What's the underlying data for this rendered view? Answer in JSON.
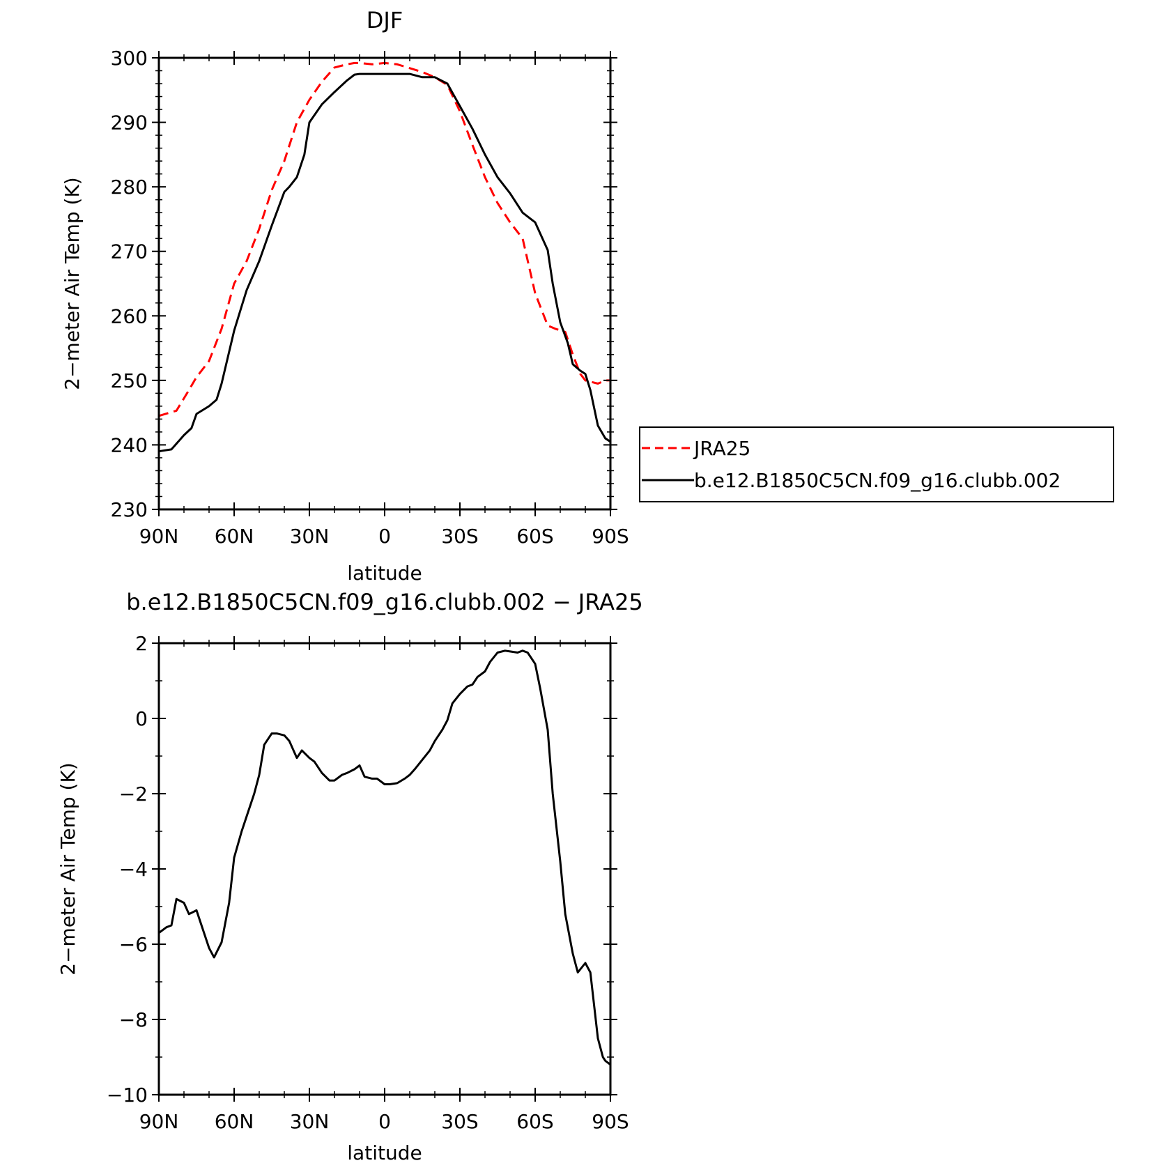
{
  "chart_data": [
    {
      "type": "line",
      "title": "DJF",
      "xlabel": "latitude",
      "ylabel": "2−meter Air Temp (K)",
      "xlim": [
        90,
        -90
      ],
      "ylim": [
        230,
        300
      ],
      "x_ticks": [
        90,
        60,
        30,
        0,
        -30,
        -60,
        -90
      ],
      "x_tick_labels": [
        "90N",
        "60N",
        "30N",
        "0",
        "30S",
        "60S",
        "90S"
      ],
      "y_ticks": [
        230,
        240,
        250,
        260,
        270,
        280,
        290,
        300
      ],
      "y_tick_labels": [
        "230",
        "240",
        "250",
        "260",
        "270",
        "280",
        "290",
        "300"
      ],
      "grid": false,
      "legend_position": "right",
      "series": [
        {
          "name": "JRA25",
          "color": "#ff0000",
          "dash": "dashed",
          "x": [
            90,
            83,
            78,
            75,
            70,
            65,
            60,
            55,
            50,
            45,
            40,
            35,
            30,
            25,
            20,
            15,
            12,
            10,
            5,
            0,
            -5,
            -10,
            -15,
            -20,
            -25,
            -30,
            -35,
            -40,
            -45,
            -50,
            -55,
            -60,
            -65,
            -68,
            -72,
            -75,
            -78,
            -80,
            -85,
            -88,
            -90
          ],
          "y": [
            244.5,
            245.3,
            248.5,
            250.5,
            253,
            258,
            265,
            268.5,
            273.5,
            279.5,
            284,
            290,
            293.5,
            296.3,
            298.5,
            299,
            299.2,
            299.2,
            299,
            299.2,
            299,
            298.4,
            297.8,
            297,
            295.8,
            291.7,
            286.5,
            281.5,
            277.5,
            274.5,
            272,
            263.5,
            258.5,
            258,
            257.5,
            254,
            251,
            250,
            249.5,
            250,
            250
          ]
        },
        {
          "name": "b.e12.B1850C5CN.f09_g16.clubb.002",
          "color": "#000000",
          "dash": "solid",
          "x": [
            90,
            85,
            80,
            77,
            75,
            70,
            67,
            65,
            60,
            57,
            55,
            50,
            45,
            40,
            38,
            35,
            32,
            30,
            25,
            20,
            15,
            12,
            10,
            5,
            0,
            -5,
            -10,
            -15,
            -20,
            -25,
            -30,
            -35,
            -40,
            -45,
            -50,
            -55,
            -60,
            -65,
            -67,
            -70,
            -73,
            -75,
            -78,
            -80,
            -82,
            -85,
            -88,
            -90
          ],
          "y": [
            239,
            239.3,
            241.5,
            242.6,
            244.8,
            246,
            247,
            249.5,
            257.7,
            261.5,
            264,
            268.5,
            274,
            279.2,
            280,
            281.5,
            285,
            290,
            292.8,
            294.7,
            296.5,
            297.4,
            297.5,
            297.5,
            297.5,
            297.5,
            297.5,
            297,
            297,
            296,
            292.5,
            289,
            285,
            281.5,
            279,
            276,
            274.5,
            270.2,
            265,
            259,
            255.8,
            252.5,
            251.5,
            251,
            248.5,
            243,
            241,
            240.5
          ]
        }
      ]
    },
    {
      "type": "line",
      "title": "b.e12.B1850C5CN.f09_g16.clubb.002 − JRA25",
      "xlabel": "latitude",
      "ylabel": "2−meter Air Temp (K)",
      "xlim": [
        90,
        -90
      ],
      "ylim": [
        -10,
        2
      ],
      "x_ticks": [
        90,
        60,
        30,
        0,
        -30,
        -60,
        -90
      ],
      "x_tick_labels": [
        "90N",
        "60N",
        "30N",
        "0",
        "30S",
        "60S",
        "90S"
      ],
      "y_ticks": [
        -10,
        -8,
        -6,
        -4,
        -2,
        0,
        2
      ],
      "y_tick_labels": [
        "−10",
        "−8",
        "−6",
        "−4",
        "−2",
        "0",
        "2"
      ],
      "grid": false,
      "series": [
        {
          "color": "#000000",
          "dash": "solid",
          "x": [
            90,
            87,
            85,
            83,
            80,
            78,
            75,
            73,
            70,
            68,
            65,
            62,
            60,
            57,
            55,
            52,
            50,
            48,
            45,
            43,
            40,
            38,
            35,
            33,
            30,
            28,
            25,
            22,
            20,
            17,
            15,
            12,
            10,
            8,
            5,
            3,
            0,
            -2,
            -5,
            -8,
            -10,
            -12,
            -15,
            -18,
            -20,
            -23,
            -25,
            -27,
            -30,
            -33,
            -35,
            -37,
            -40,
            -42,
            -45,
            -48,
            -50,
            -53,
            -55,
            -57,
            -60,
            -62,
            -65,
            -67,
            -70,
            -72,
            -75,
            -77,
            -80,
            -82,
            -85,
            -87,
            -88,
            -90
          ],
          "y": [
            -5.7,
            -5.55,
            -5.5,
            -4.8,
            -4.9,
            -5.2,
            -5.1,
            -5.5,
            -6.1,
            -6.35,
            -5.95,
            -4.9,
            -3.7,
            -3,
            -2.6,
            -2,
            -1.5,
            -0.7,
            -0.4,
            -0.4,
            -0.45,
            -0.6,
            -1.05,
            -0.85,
            -1.05,
            -1.15,
            -1.45,
            -1.65,
            -1.65,
            -1.5,
            -1.45,
            -1.35,
            -1.25,
            -1.55,
            -1.6,
            -1.6,
            -1.75,
            -1.75,
            -1.72,
            -1.6,
            -1.5,
            -1.35,
            -1.1,
            -0.85,
            -0.6,
            -0.3,
            -0.05,
            0.4,
            0.65,
            0.85,
            0.9,
            1.1,
            1.25,
            1.5,
            1.75,
            1.8,
            1.78,
            1.75,
            1.8,
            1.75,
            1.45,
            0.8,
            -0.3,
            -2,
            -3.8,
            -5.2,
            -6.25,
            -6.75,
            -6.5,
            -6.75,
            -8.5,
            -9,
            -9.1,
            -9.2
          ]
        }
      ]
    }
  ]
}
